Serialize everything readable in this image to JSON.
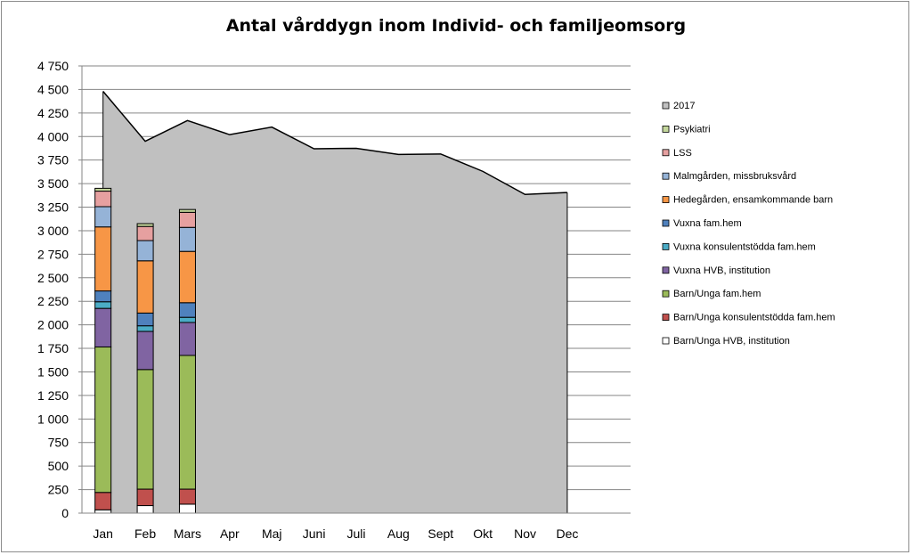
{
  "chart_data": {
    "type": "bar",
    "title": "Antal vårddygn inom Individ- och familjeomsorg",
    "xlabel": "",
    "ylabel": "",
    "ylim": [
      0,
      4750
    ],
    "ytick_step": 250,
    "ytick_labels": [
      "0",
      "250",
      "500",
      "750",
      "1 000",
      "1 250",
      "1 500",
      "1 750",
      "2 000",
      "2 250",
      "2 500",
      "2 750",
      "3 000",
      "3 250",
      "3 500",
      "3 750",
      "4 000",
      "4 250",
      "4 500",
      "4 750"
    ],
    "categories": [
      "Jan",
      "Feb",
      "Mars",
      "Apr",
      "Maj",
      "Juni",
      "Juli",
      "Aug",
      "Sept",
      "Okt",
      "Nov",
      "Dec"
    ],
    "grid": true,
    "legend_position": "right",
    "area_series": {
      "name": "2017",
      "color": "#c0c0c0",
      "values": [
        4480,
        3950,
        4170,
        4020,
        4100,
        3870,
        3875,
        3810,
        3815,
        3630,
        3385,
        3405
      ]
    },
    "series": [
      {
        "name": "Barn/Unga HVB, institution",
        "color": "#ffffff",
        "values": [
          35,
          80,
          95,
          null,
          null,
          null,
          null,
          null,
          null,
          null,
          null,
          null
        ]
      },
      {
        "name": "Barn/Unga konsulentstödda fam.hem",
        "color": "#c0504d",
        "values": [
          185,
          175,
          160,
          null,
          null,
          null,
          null,
          null,
          null,
          null,
          null,
          null
        ]
      },
      {
        "name": "Barn/Unga fam.hem",
        "color": "#9bbb59",
        "values": [
          1545,
          1270,
          1420,
          null,
          null,
          null,
          null,
          null,
          null,
          null,
          null,
          null
        ]
      },
      {
        "name": "Vuxna HVB, institution",
        "color": "#8064a2",
        "values": [
          410,
          405,
          350,
          null,
          null,
          null,
          null,
          null,
          null,
          null,
          null,
          null
        ]
      },
      {
        "name": "Vuxna konsulentstödda fam.hem",
        "color": "#4bacc6",
        "values": [
          70,
          60,
          55,
          null,
          null,
          null,
          null,
          null,
          null,
          null,
          null,
          null
        ]
      },
      {
        "name": "Vuxna fam.hem",
        "color": "#4f81bd",
        "values": [
          115,
          135,
          155,
          null,
          null,
          null,
          null,
          null,
          null,
          null,
          null,
          null
        ]
      },
      {
        "name": "Hedegården, ensamkommande barn",
        "color": "#f79646",
        "values": [
          680,
          555,
          545,
          null,
          null,
          null,
          null,
          null,
          null,
          null,
          null,
          null
        ]
      },
      {
        "name": "Malmgården, missbruksvård",
        "color": "#95b3d7",
        "values": [
          215,
          215,
          255,
          null,
          null,
          null,
          null,
          null,
          null,
          null,
          null,
          null
        ]
      },
      {
        "name": "LSS",
        "color": "#e6a0a0",
        "values": [
          165,
          150,
          160,
          null,
          null,
          null,
          null,
          null,
          null,
          null,
          null,
          null
        ]
      },
      {
        "name": "Psykiatri",
        "color": "#c3d69b",
        "values": [
          30,
          30,
          30,
          null,
          null,
          null,
          null,
          null,
          null,
          null,
          null,
          null
        ]
      }
    ],
    "legend_order": [
      "2017",
      "Psykiatri",
      "LSS",
      "Malmgården, missbruksvård",
      "Hedegården, ensamkommande barn",
      "Vuxna fam.hem",
      "Vuxna konsulentstödda fam.hem",
      "Vuxna HVB, institution",
      "Barn/Unga fam.hem",
      "Barn/Unga konsulentstödda fam.hem",
      "Barn/Unga HVB, institution"
    ]
  }
}
